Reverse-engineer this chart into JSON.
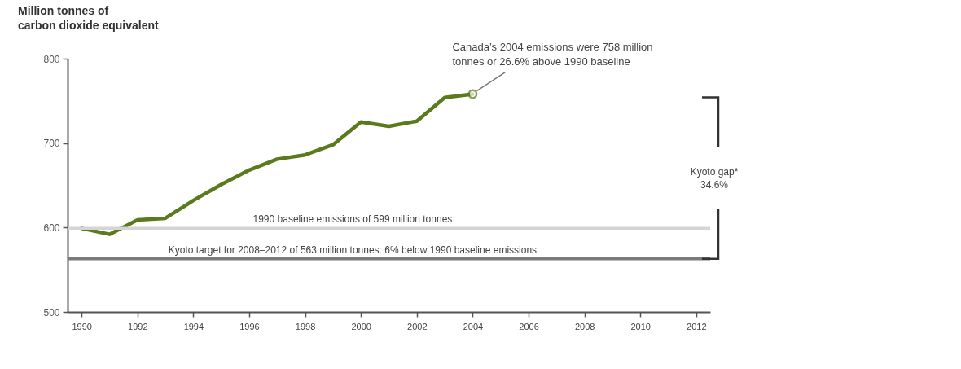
{
  "chart_data": {
    "type": "line",
    "ylabel": "Million tonnes of\ncarbon dioxide equivalent",
    "x": [
      1990,
      1991,
      1992,
      1993,
      1994,
      1995,
      1996,
      1997,
      1998,
      1999,
      2000,
      2001,
      2002,
      2003,
      2004
    ],
    "series": [
      {
        "color": "#5b7a1e",
        "values": [
          599,
          592,
          609,
          611,
          632,
          651,
          668,
          681,
          686,
          698,
          725,
          720,
          726,
          754,
          758
        ]
      }
    ],
    "xlim": [
      1989.5,
      2012.5
    ],
    "xticks": [
      1990,
      1992,
      1994,
      1996,
      1998,
      2000,
      2002,
      2004,
      2006,
      2008,
      2010,
      2012
    ],
    "ylim": [
      500,
      800
    ],
    "yticks": [
      500,
      600,
      700,
      800
    ],
    "ref_lines": [
      {
        "axis": "y",
        "value": 599,
        "label": "1990 baseline emissions of 599 million tonnes",
        "color": "#d4d4d4"
      },
      {
        "axis": "y",
        "value": 563,
        "label": "Kyoto target for 2008–2012 of 563 million tonnes: 6% below 1990 baseline emissions",
        "color": "#7a7a7a"
      }
    ],
    "annotations": [
      {
        "text": "Canada’s 2004 emissions were 758 million tonnes or 26.6% above 1990 baseline",
        "x": 2004,
        "y": 758
      },
      "Kyoto gap*\n34.6%"
    ],
    "grid": false,
    "marker": "none",
    "line_style": "solid"
  }
}
